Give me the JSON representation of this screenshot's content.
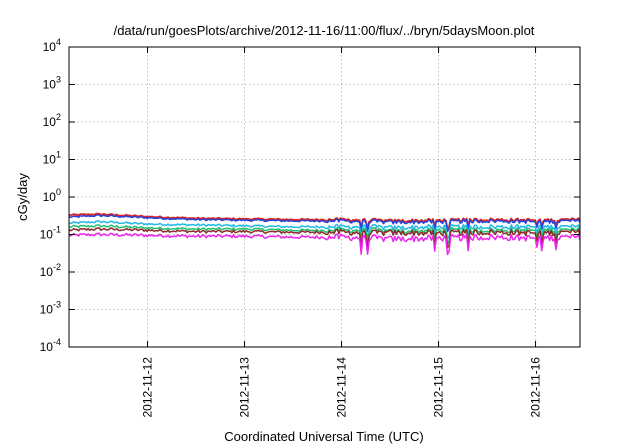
{
  "chart_data": {
    "type": "line",
    "title": "/data/run/goesPlots/archive/2012-11-16/11:00/flux/../bryn/5daysMoon.plot",
    "xlabel": "Coordinated Universal Time (UTC)",
    "ylabel": "cGy/day",
    "yscale": "log",
    "ylim": [
      0.0001,
      10000
    ],
    "xlim": [
      "2012-11-11 04:34",
      "2012-11-16 11:00"
    ],
    "grid": true,
    "legend": "none",
    "y_ticks": [
      {
        "value": 0.0001,
        "base": "10",
        "exp": "-4"
      },
      {
        "value": 0.001,
        "base": "10",
        "exp": "-3"
      },
      {
        "value": 0.01,
        "base": "10",
        "exp": "-2"
      },
      {
        "value": 0.1,
        "base": "10",
        "exp": "-1"
      },
      {
        "value": 1,
        "base": "10",
        "exp": "0"
      },
      {
        "value": 10,
        "base": "10",
        "exp": "1"
      },
      {
        "value": 100,
        "base": "10",
        "exp": "2"
      },
      {
        "value": 1000,
        "base": "10",
        "exp": "3"
      },
      {
        "value": 10000,
        "base": "10",
        "exp": "4"
      }
    ],
    "x_ticks": [
      "2012-11-12",
      "2012-11-13",
      "2012-11-14",
      "2012-11-15",
      "2012-11-16"
    ],
    "x": [
      "2012-11-11 04:34",
      "2012-11-11 12:00",
      "2012-11-12 00:00",
      "2012-11-12 12:00",
      "2012-11-13 00:00",
      "2012-11-13 12:00",
      "2012-11-14 00:00",
      "2012-11-14 08:00",
      "2012-11-14 12:00",
      "2012-11-15 00:00",
      "2012-11-15 12:00",
      "2012-11-16 00:00",
      "2012-11-16 11:00"
    ],
    "series": [
      {
        "color": "#dd2222",
        "values": [
          0.33,
          0.35,
          0.3,
          0.27,
          0.26,
          0.25,
          0.25,
          0.24,
          0.23,
          0.24,
          0.25,
          0.24,
          0.25
        ]
      },
      {
        "color": "#2244dd",
        "values": [
          0.29,
          0.32,
          0.28,
          0.25,
          0.24,
          0.23,
          0.23,
          0.22,
          0.21,
          0.22,
          0.23,
          0.22,
          0.23
        ]
      },
      {
        "color": "#22b8e8",
        "values": [
          0.2,
          0.22,
          0.19,
          0.18,
          0.17,
          0.16,
          0.16,
          0.16,
          0.15,
          0.16,
          0.16,
          0.16,
          0.16
        ]
      },
      {
        "color": "#22c070",
        "values": [
          0.16,
          0.17,
          0.15,
          0.14,
          0.14,
          0.13,
          0.13,
          0.13,
          0.12,
          0.13,
          0.13,
          0.13,
          0.13
        ]
      },
      {
        "color": "#8a2a2a",
        "values": [
          0.13,
          0.14,
          0.13,
          0.12,
          0.12,
          0.115,
          0.115,
          0.11,
          0.11,
          0.11,
          0.115,
          0.11,
          0.115
        ]
      },
      {
        "color": "#ee22ee",
        "values": [
          0.095,
          0.1,
          0.095,
          0.09,
          0.09,
          0.085,
          0.085,
          0.08,
          0.075,
          0.08,
          0.085,
          0.08,
          0.085
        ]
      }
    ]
  }
}
